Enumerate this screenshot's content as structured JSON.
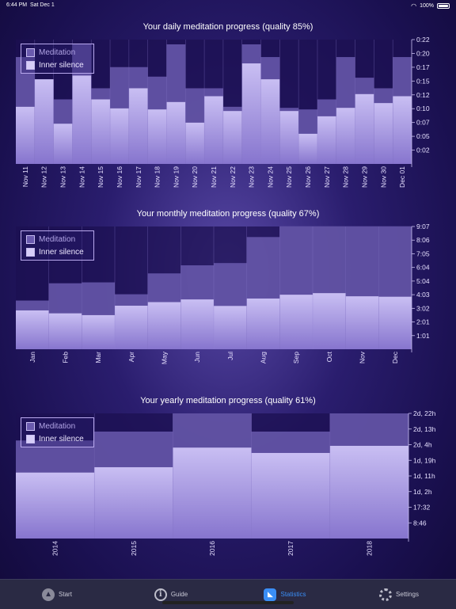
{
  "status": {
    "time": "6:44 PM",
    "date": "Sat Dec 1",
    "battery": "100%",
    "wifi_icon": "wifi-icon",
    "battery_icon": "battery-icon"
  },
  "colors": {
    "meditation": "#6a5aae",
    "silence": "#d6cdf8",
    "grid": "#8d7fd0"
  },
  "legend": {
    "meditation": "Meditation",
    "silence": "Inner silence"
  },
  "chart_data": [
    {
      "type": "bar",
      "title": "Your daily meditation progress (quality 85%)",
      "categories": [
        "Nov 11",
        "Nov 12",
        "Nov 13",
        "Nov 14",
        "Nov 15",
        "Nov 16",
        "Nov 17",
        "Nov 18",
        "Nov 19",
        "Nov 20",
        "Nov 21",
        "Nov 22",
        "Nov 23",
        "Nov 24",
        "Nov 25",
        "Nov 26",
        "Nov 27",
        "Nov 28",
        "Nov 29",
        "Nov 30",
        "Dec 01"
      ],
      "y_ticks": [
        "0:02",
        "0:05",
        "0:07",
        "0:10",
        "0:12",
        "0:15",
        "0:17",
        "0:20",
        "0:22"
      ],
      "ylim_minutes": [
        0,
        23.5
      ],
      "series": [
        {
          "name": "Meditation",
          "values": [
            20.2,
            16.0,
            12.2,
            22.6,
            14.3,
            18.3,
            18.3,
            16.5,
            22.6,
            14.3,
            14.3,
            10.8,
            22.6,
            20.2,
            10.6,
            10.3,
            12.2,
            20.2,
            16.3,
            14.3,
            20.2
          ]
        },
        {
          "name": "Inner silence",
          "values": [
            10.8,
            16.0,
            7.6,
            16.7,
            12.2,
            10.5,
            14.3,
            10.3,
            11.7,
            7.8,
            12.8,
            10.0,
            19.0,
            16.0,
            10.0,
            5.7,
            9.0,
            10.6,
            13.2,
            11.5,
            12.8
          ]
        }
      ]
    },
    {
      "type": "bar",
      "title": "Your monthly meditation progress (quality 67%)",
      "categories": [
        "Jan",
        "Feb",
        "Mar",
        "Apr",
        "May",
        "Jun",
        "Jul",
        "Aug",
        "Sep",
        "Oct",
        "Nov",
        "Dec"
      ],
      "y_ticks": [
        "1:01",
        "2:01",
        "3:02",
        "4:03",
        "5:04",
        "6:04",
        "7:05",
        "8:06",
        "9:07"
      ],
      "ylim_minutes": [
        0,
        547
      ],
      "series": [
        {
          "name": "Meditation",
          "values": [
            217,
            294,
            298,
            245,
            338,
            374,
            384,
            500,
            548,
            548,
            548,
            548
          ]
        },
        {
          "name": "Inner silence",
          "values": [
            173,
            160,
            152,
            194,
            210,
            222,
            193,
            226,
            243,
            250,
            236,
            234
          ]
        }
      ]
    },
    {
      "type": "bar",
      "title": "Your yearly meditation progress (quality 61%)",
      "categories": [
        "2014",
        "2015",
        "2016",
        "2017",
        "2018"
      ],
      "y_ticks": [
        "8:46",
        "17:32",
        "1d, 2h",
        "1d, 11h",
        "1d, 19h",
        "2d, 4h",
        "2d, 13h",
        "2d, 22h"
      ],
      "ylim_hours": [
        0,
        70.2
      ],
      "series": [
        {
          "name": "Meditation",
          "values": [
            55,
            60,
            70.2,
            60,
            70.2
          ]
        },
        {
          "name": "Inner silence",
          "values": [
            37,
            40,
            51,
            48,
            52
          ]
        }
      ]
    }
  ],
  "tabs": [
    {
      "label": "Start",
      "icon": "meditator-icon"
    },
    {
      "label": "Guide",
      "icon": "info-icon"
    },
    {
      "label": "Statistics",
      "icon": "chart-icon"
    },
    {
      "label": "Settings",
      "icon": "gear-icon"
    }
  ]
}
